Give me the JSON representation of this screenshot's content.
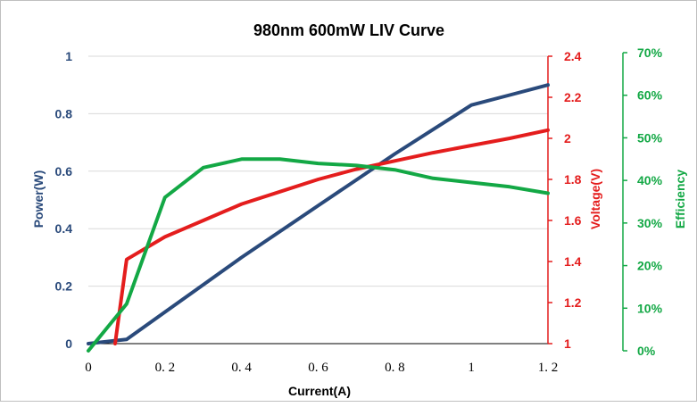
{
  "chart_data": {
    "type": "line",
    "title": "980nm 600mW LIV Curve",
    "xlabel": "Current(A)",
    "xlim": [
      0,
      1.2
    ],
    "x_ticks": [
      "0",
      "0. 2",
      "0. 4",
      "0. 6",
      "0. 8",
      "1",
      "1. 2"
    ],
    "x_tick_values": [
      0,
      0.2,
      0.4,
      0.6,
      0.8,
      1.0,
      1.2
    ],
    "grid": true,
    "axes": {
      "left": {
        "label": "Power(W)",
        "lim": [
          0,
          1
        ],
        "ticks": [
          "0",
          "0.2",
          "0.4",
          "0.6",
          "0.8",
          "1"
        ],
        "tick_values": [
          0,
          0.2,
          0.4,
          0.6,
          0.8,
          1.0
        ],
        "color": "#2a4a7b"
      },
      "right": {
        "label": "Voltage(V)",
        "lim": [
          1,
          2.4
        ],
        "ticks": [
          "1",
          "1.2",
          "1.4",
          "1.6",
          "1.8",
          "2",
          "2.2",
          "2.4"
        ],
        "tick_values": [
          1,
          1.2,
          1.4,
          1.6,
          1.8,
          2.0,
          2.2,
          2.4
        ],
        "color": "#e41d1d"
      },
      "right2": {
        "label": "Efficiency",
        "lim": [
          0,
          70
        ],
        "ticks": [
          "0%",
          "10%",
          "20%",
          "30%",
          "40%",
          "50%",
          "60%",
          "70%"
        ],
        "tick_values": [
          0,
          10,
          20,
          30,
          40,
          50,
          60,
          70
        ],
        "color": "#13a845"
      }
    },
    "series": [
      {
        "axis": "left",
        "color": "#2a4a7b",
        "x": [
          0,
          0.1,
          0.2,
          0.3,
          0.4,
          0.5,
          0.6,
          0.7,
          0.8,
          0.9,
          1.0,
          1.1,
          1.2
        ],
        "y": [
          0,
          0.015,
          0.11,
          0.205,
          0.3,
          0.39,
          0.48,
          0.57,
          0.66,
          0.745,
          0.83,
          0.865,
          0.9
        ]
      },
      {
        "axis": "right",
        "color": "#e41d1d",
        "x": [
          0.07,
          0.1,
          0.2,
          0.3,
          0.4,
          0.5,
          0.6,
          0.7,
          0.8,
          0.9,
          1.0,
          1.1,
          1.2
        ],
        "y": [
          1.0,
          1.41,
          1.52,
          1.6,
          1.68,
          1.74,
          1.8,
          1.85,
          1.89,
          1.93,
          1.965,
          2.0,
          2.04
        ]
      },
      {
        "axis": "right2",
        "color": "#13a845",
        "x": [
          0,
          0.1,
          0.2,
          0.3,
          0.4,
          0.5,
          0.6,
          0.7,
          0.8,
          0.9,
          1.0,
          1.1,
          1.2
        ],
        "y": [
          0,
          11,
          36,
          43,
          45,
          45,
          44,
          43.5,
          42.5,
          40.5,
          39.5,
          38.5,
          37
        ]
      }
    ]
  }
}
